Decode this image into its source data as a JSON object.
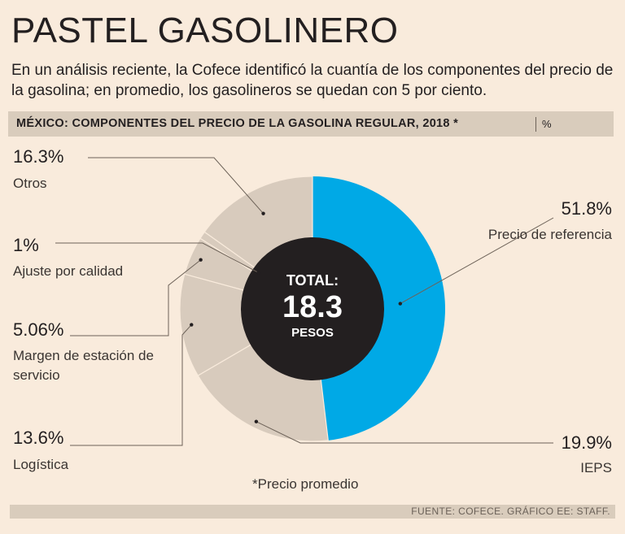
{
  "header": {
    "title": "PASTEL GASOLINERO",
    "subtitle": "En un análisis reciente, la Cofece identificó la cuantía de los componentes del precio de la gasolina; en promedio, los gasolineros se quedan con 5 por ciento."
  },
  "section": {
    "title": "MÉXICO: COMPONENTES DEL PRECIO DE LA GASOLINA REGULAR, 2018 *",
    "unit": "%"
  },
  "colors": {
    "background": "#f9ebdc",
    "highlight": "#00a9e6",
    "other": "#d8cbbd",
    "center": "#231f20",
    "leader": "#6d6258"
  },
  "chart_data": {
    "type": "pie",
    "title": "MÉXICO: COMPONENTES DEL PRECIO DE LA GASOLINA REGULAR, 2018 *",
    "unit": "%",
    "slices": [
      {
        "label": "Precio de referencia",
        "value": 51.8,
        "value_label": "51.8%"
      },
      {
        "label": "IEPS",
        "value": 19.9,
        "value_label": "19.9%"
      },
      {
        "label": "Logística",
        "value": 13.6,
        "value_label": "13.6%"
      },
      {
        "label": "Margen de estación de servicio",
        "value": 5.06,
        "value_label": "5.06%"
      },
      {
        "label": "Ajuste por calidad",
        "value": 1,
        "value_label": "1%"
      },
      {
        "label": "Otros",
        "value": 16.3,
        "value_label": "16.3%"
      }
    ],
    "center": {
      "label_top": "TOTAL:",
      "value": "18.3",
      "label_bottom": "PESOS"
    }
  },
  "footer": {
    "footnote": "*Precio promedio",
    "source": "FUENTE:  COFECE. GRÁFICO EE: STAFF."
  }
}
